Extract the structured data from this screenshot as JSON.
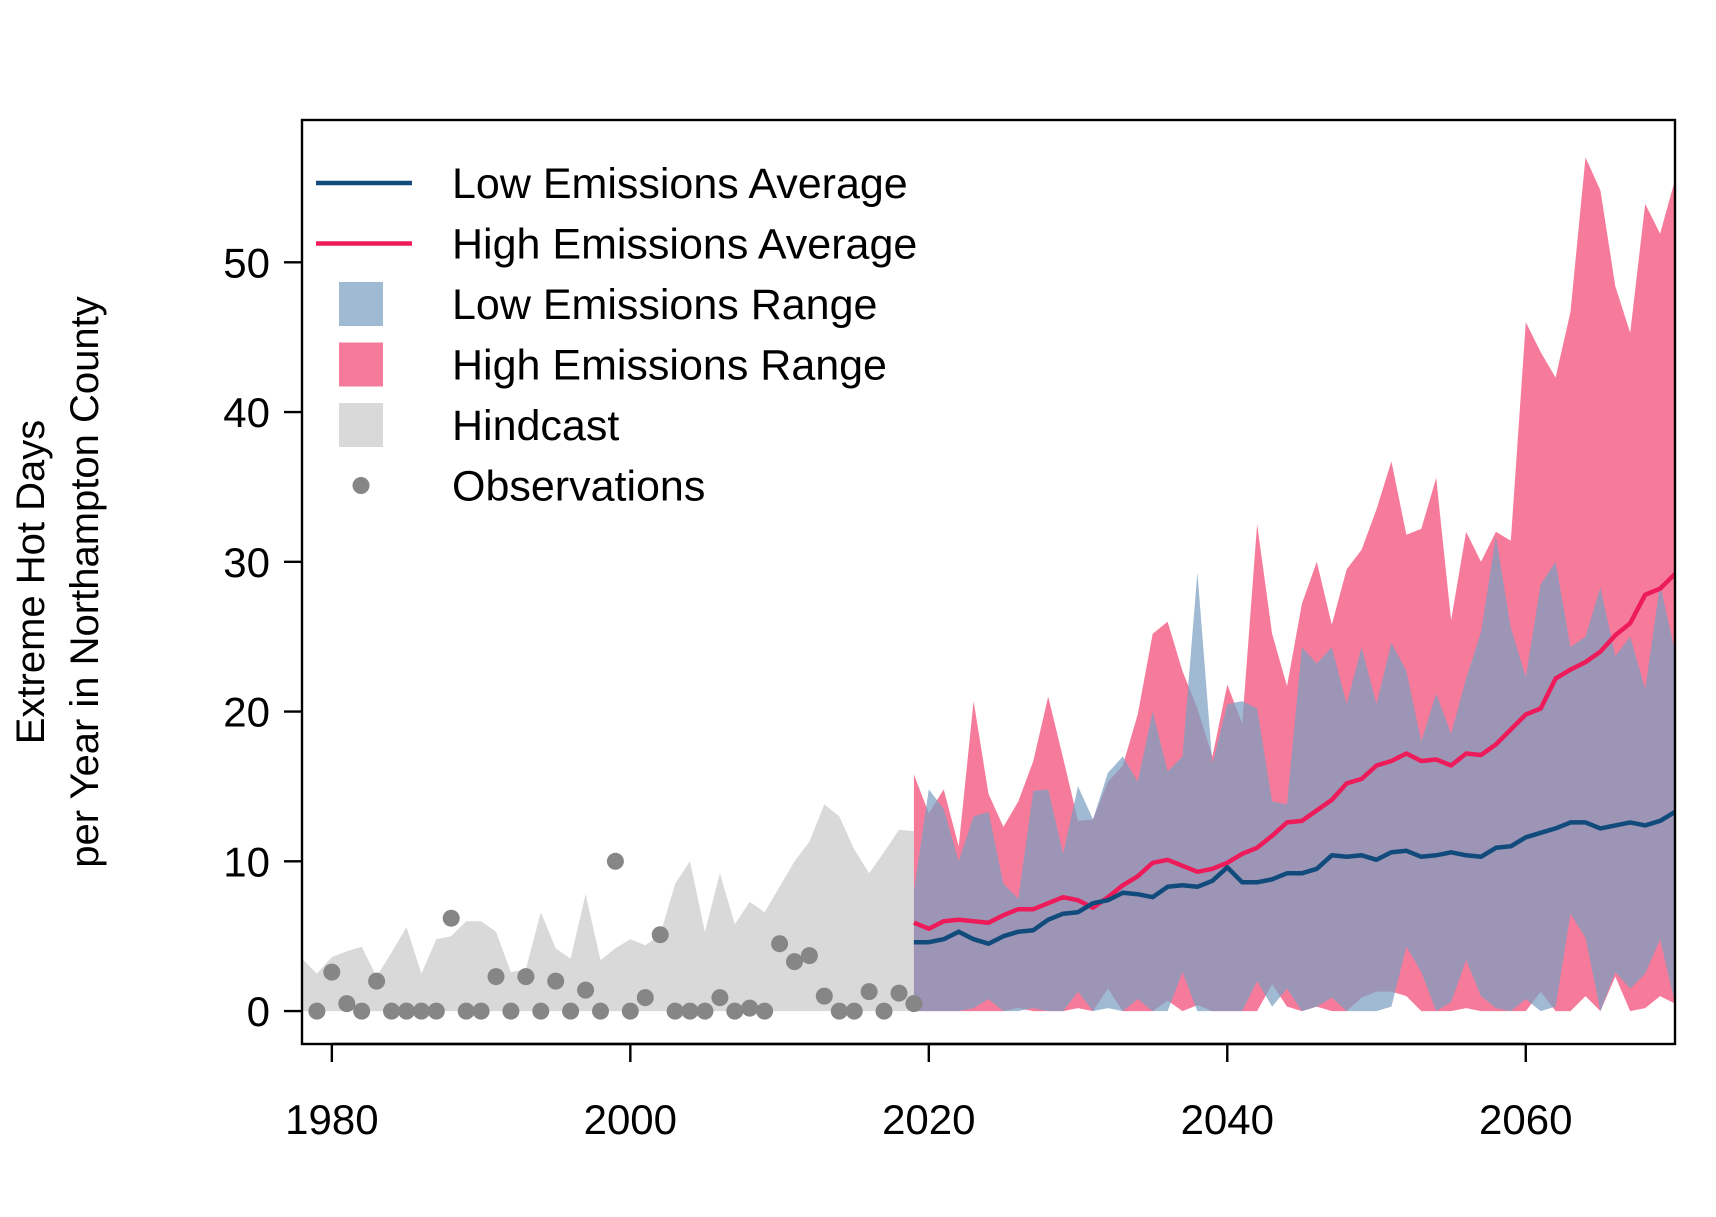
{
  "chart_data": {
    "type": "line",
    "ylabel": [
      "Extreme Hot Days",
      "per Year in Northampton County"
    ],
    "xlim": [
      1978,
      2070
    ],
    "ylim": [
      -2.2,
      59.5
    ],
    "xticks": [
      1980,
      2000,
      2020,
      2040,
      2060
    ],
    "xtick_labels": [
      "1980",
      "2000",
      "2020",
      "2040",
      "2060"
    ],
    "yticks": [
      0,
      10,
      20,
      30,
      40,
      50
    ],
    "ytick_labels": [
      "0",
      "10",
      "20",
      "30",
      "40",
      "50"
    ],
    "legend_position": "top-left",
    "grid": false,
    "colors": {
      "low_line": "#114b7c",
      "high_line": "#ee1b5a",
      "low_range": "#7a9fc0",
      "high_range": "#f67b9b",
      "hindcast": "#d9d9d9",
      "observations": "#868686"
    },
    "legend": [
      {
        "label": "Low Emissions Average",
        "kind": "line",
        "key": "low_line"
      },
      {
        "label": "High Emissions Average",
        "kind": "line",
        "key": "high_line"
      },
      {
        "label": "Low Emissions Range",
        "kind": "box",
        "key": "low_range"
      },
      {
        "label": "High Emissions Range",
        "kind": "box",
        "key": "high_range"
      },
      {
        "label": "Hindcast",
        "kind": "box",
        "key": "hindcast"
      },
      {
        "label": "Observations",
        "kind": "dot",
        "key": "observations"
      }
    ],
    "hindcast": {
      "x": [
        1978,
        1979,
        1980,
        1981,
        1982,
        1983,
        1984,
        1985,
        1986,
        1987,
        1988,
        1989,
        1990,
        1991,
        1992,
        1993,
        1994,
        1995,
        1996,
        1997,
        1998,
        1999,
        2000,
        2001,
        2002,
        2003,
        2004,
        2005,
        2006,
        2007,
        2008,
        2009,
        2010,
        2011,
        2012,
        2013,
        2014,
        2015,
        2016,
        2017,
        2018,
        2019
      ],
      "upper": [
        3.5,
        2.5,
        3.6,
        4.0,
        4.3,
        2.3,
        3.9,
        5.6,
        2.5,
        4.8,
        5.0,
        6.0,
        6.0,
        5.3,
        2.6,
        2.8,
        6.6,
        4.2,
        3.5,
        7.8,
        3.4,
        4.2,
        4.8,
        4.4,
        5.1,
        8.5,
        10.0,
        5.3,
        9.2,
        5.8,
        7.3,
        6.6,
        8.3,
        10.0,
        11.3,
        13.8,
        13.0,
        10.8,
        9.2,
        10.6,
        12.1,
        12.0
      ],
      "lower": [
        0,
        0,
        0,
        0,
        0,
        0,
        0,
        0,
        0,
        0,
        0,
        0,
        0,
        0,
        0,
        0,
        0,
        0,
        0,
        0,
        0,
        0,
        0,
        0,
        0,
        0,
        0,
        0,
        0,
        0,
        0,
        0,
        0,
        0,
        0,
        0,
        0,
        0,
        0,
        0,
        0,
        0
      ]
    },
    "observations": {
      "x": [
        1979,
        1980,
        1981,
        1982,
        1983,
        1984,
        1985,
        1986,
        1987,
        1988,
        1989,
        1990,
        1991,
        1992,
        1993,
        1994,
        1995,
        1996,
        1997,
        1998,
        1999,
        2000,
        2001,
        2002,
        2003,
        2004,
        2005,
        2006,
        2007,
        2008,
        2009,
        2010,
        2011,
        2012,
        2013,
        2014,
        2015,
        2016,
        2017,
        2018,
        2019
      ],
      "y": [
        0,
        2.6,
        0.5,
        0,
        2.0,
        0,
        0,
        0,
        0,
        6.2,
        0,
        0,
        2.3,
        0,
        2.3,
        0,
        2.0,
        0,
        1.4,
        0,
        10.0,
        0,
        0.9,
        5.1,
        0,
        0,
        0,
        0.9,
        0,
        0.2,
        0,
        4.5,
        3.3,
        3.7,
        1.0,
        0,
        0,
        1.3,
        0,
        1.2,
        0.5
      ]
    },
    "years": [
      2019,
      2020,
      2021,
      2022,
      2023,
      2024,
      2025,
      2026,
      2027,
      2028,
      2029,
      2030,
      2031,
      2032,
      2033,
      2034,
      2035,
      2036,
      2037,
      2038,
      2039,
      2040,
      2041,
      2042,
      2043,
      2044,
      2045,
      2046,
      2047,
      2048,
      2049,
      2050,
      2051,
      2052,
      2053,
      2054,
      2055,
      2056,
      2057,
      2058,
      2059,
      2060,
      2061,
      2062,
      2063,
      2064,
      2065,
      2066,
      2067,
      2068,
      2069,
      2070
    ],
    "low_range": {
      "upper": [
        8,
        14.8,
        13.5,
        10,
        13.0,
        13.3,
        8.5,
        7.5,
        14.7,
        14.8,
        10.5,
        15.0,
        12.8,
        15.9,
        17.0,
        15.3,
        20.0,
        16.0,
        17.0,
        29.3,
        16.5,
        20.5,
        20.7,
        20.2,
        14.0,
        13.8,
        24.3,
        23.2,
        24.3,
        20.5,
        24.3,
        20.5,
        24.6,
        22.7,
        18.0,
        21.2,
        18.5,
        22.2,
        25.3,
        31.7,
        25.6,
        22.3,
        28.5,
        30.0,
        24.3,
        25.0,
        28.3,
        23.7,
        25.0,
        21.5,
        28.5,
        24.0
      ],
      "lower": [
        0,
        0,
        0,
        0,
        0.2,
        0.8,
        0,
        0,
        0.2,
        0,
        0,
        1.3,
        0,
        0.2,
        0,
        0.8,
        0,
        0,
        2.6,
        0,
        0,
        0,
        0,
        2.0,
        0.3,
        1.5,
        0,
        0.3,
        0.9,
        0,
        0,
        0,
        0.3,
        4.3,
        2.6,
        0,
        0.6,
        3.4,
        1.0,
        0.2,
        0,
        0.8,
        0,
        0.3,
        6.5,
        4.9,
        0,
        2.6,
        1.5,
        2.5,
        4.8,
        0.5
      ]
    },
    "high_range": {
      "upper": [
        15.8,
        13.2,
        14.8,
        11.0,
        20.7,
        14.5,
        12.3,
        14.0,
        16.7,
        21.0,
        16.9,
        12.7,
        12.8,
        15.3,
        16.4,
        19.8,
        25.2,
        26.0,
        22.7,
        20.2,
        17.0,
        21.8,
        19.2,
        32.5,
        25.2,
        21.7,
        27.2,
        30.0,
        25.8,
        29.5,
        30.8,
        33.5,
        36.7,
        31.8,
        32.2,
        35.6,
        26.1,
        32.0,
        30.0,
        32.0,
        31.4,
        46.0,
        44.0,
        42.3,
        46.7,
        57.0,
        54.8,
        48.4,
        45.3,
        53.9,
        51.9,
        55.5
      ],
      "lower": [
        0,
        0,
        0,
        0,
        0,
        0,
        0,
        0.2,
        0,
        0,
        0,
        0.2,
        0,
        1.5,
        0,
        0,
        0,
        0.7,
        0,
        0.4,
        0,
        0,
        0,
        0,
        1.8,
        0.3,
        0,
        0.3,
        0,
        0,
        0.9,
        1.3,
        1.3,
        1.0,
        0,
        0,
        0,
        0.2,
        0,
        0,
        0,
        0,
        1.3,
        0,
        0,
        1.0,
        0,
        2.3,
        0,
        0.2,
        1.0,
        0.5
      ]
    },
    "low_avg": [
      4.6,
      4.6,
      4.8,
      5.3,
      4.8,
      4.5,
      5.0,
      5.3,
      5.4,
      6.1,
      6.5,
      6.6,
      7.2,
      7.4,
      7.9,
      7.8,
      7.6,
      8.3,
      8.4,
      8.3,
      8.7,
      9.6,
      8.6,
      8.6,
      8.8,
      9.2,
      9.2,
      9.5,
      10.4,
      10.3,
      10.4,
      10.1,
      10.6,
      10.7,
      10.3,
      10.4,
      10.6,
      10.4,
      10.3,
      10.9,
      11.0,
      11.6,
      11.9,
      12.2,
      12.6,
      12.6,
      12.2,
      12.4,
      12.6,
      12.4,
      12.7,
      13.3
    ],
    "high_avg": [
      5.9,
      5.5,
      6.0,
      6.1,
      6.0,
      5.9,
      6.4,
      6.8,
      6.8,
      7.2,
      7.6,
      7.4,
      6.9,
      7.6,
      8.4,
      9.0,
      9.9,
      10.1,
      9.7,
      9.3,
      9.5,
      9.9,
      10.5,
      10.9,
      11.7,
      12.6,
      12.7,
      13.4,
      14.1,
      15.2,
      15.5,
      16.4,
      16.7,
      17.2,
      16.7,
      16.8,
      16.4,
      17.2,
      17.1,
      17.8,
      18.8,
      19.8,
      20.2,
      22.2,
      22.8,
      23.3,
      24.0,
      25.1,
      25.9,
      27.8,
      28.2,
      29.2
    ]
  }
}
